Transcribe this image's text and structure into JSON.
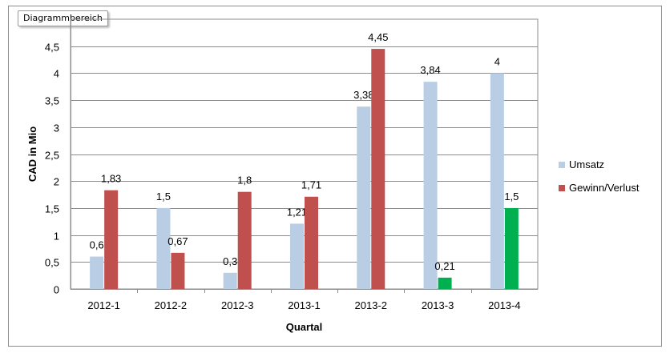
{
  "window": {
    "area_label": "Diagrammbereich"
  },
  "chart_data": {
    "type": "bar",
    "title": "",
    "xlabel": "Quartal",
    "ylabel": "CAD in Mio",
    "ylim": [
      0,
      5
    ],
    "yticks": [
      0,
      0.5,
      1,
      1.5,
      2,
      2.5,
      3,
      3.5,
      4,
      4.5
    ],
    "ytick_labels": [
      "0",
      "0,5",
      "1",
      "1,5",
      "2",
      "2,5",
      "3",
      "3,5",
      "4",
      "4,5"
    ],
    "grid": true,
    "legend_position": "right",
    "categories": [
      "2012-1",
      "2012-2",
      "2012-3",
      "2013-1",
      "2013-2",
      "2013-3",
      "2013-4"
    ],
    "series": [
      {
        "name": "Umsatz",
        "color": "#b9cde5",
        "values": [
          0.6,
          1.5,
          0.3,
          1.21,
          3.38,
          3.84,
          4
        ],
        "labels": [
          "0,6",
          "1,5",
          "0,3",
          "1,21",
          "3,38",
          "3,84",
          "4"
        ]
      },
      {
        "name": "Gewinn/Verlust",
        "color": "#c0504d",
        "point_colors": [
          "#c0504d",
          "#c0504d",
          "#c0504d",
          "#c0504d",
          "#c0504d",
          "#00b050",
          "#00b050"
        ],
        "values": [
          1.83,
          0.67,
          1.8,
          1.71,
          4.45,
          0.21,
          1.5
        ],
        "labels": [
          "1,83",
          "0,67",
          "1,8",
          "1,71",
          "4,45",
          "0,21",
          "1,5"
        ]
      }
    ]
  }
}
